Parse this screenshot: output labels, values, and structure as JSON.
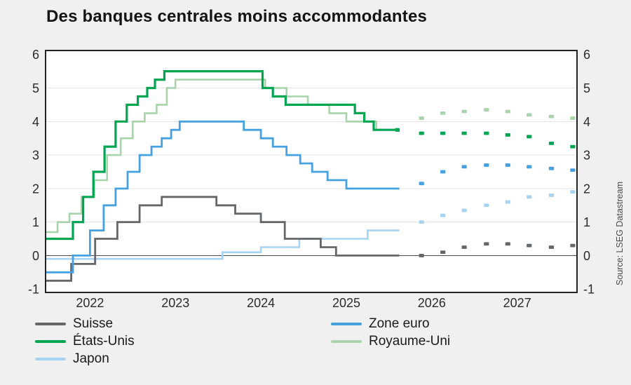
{
  "title": "Des banques centrales moins accommodantes",
  "source": "Source: LSEG Datastream",
  "style": {
    "page_bg": "#f0f0f0",
    "plot_bg": "#ffffff",
    "grid_color": "#e4e4e4",
    "zero_line_color": "#4d4d4d",
    "border_color": "#222222",
    "tick_text_color": "#2b2b2b",
    "title_color": "#141414",
    "source_color": "#4a4a4a"
  },
  "legend": {
    "columns": [
      {
        "items": [
          {
            "series": "suisse",
            "label": "Suisse"
          },
          {
            "series": "etats_unis",
            "label": "États-Unis"
          },
          {
            "series": "japon",
            "label": "Japon"
          }
        ]
      },
      {
        "items": [
          {
            "series": "zone_euro",
            "label": "Zone euro"
          },
          {
            "series": "royaume_uni",
            "label": "Royaume-Uni"
          }
        ]
      }
    ]
  },
  "chart_data": {
    "type": "line",
    "subtype": "step-with-forecast-dots",
    "unit": "taux directeurs, %",
    "xlim": [
      2021.98,
      2028.2
    ],
    "ylim": [
      -1.1,
      6.12
    ],
    "grid": true,
    "y_ticks": [
      -1,
      0,
      1,
      2,
      3,
      4,
      5,
      6
    ],
    "x_ticks": [
      {
        "label": "2022",
        "t": 2022.5
      },
      {
        "label": "2023",
        "t": 2023.5
      },
      {
        "label": "2024",
        "t": 2024.5
      },
      {
        "label": "2025",
        "t": 2025.5
      },
      {
        "label": "2026",
        "t": 2026.5
      },
      {
        "label": "2027",
        "t": 2027.5
      }
    ],
    "solid_end_t": 2026.12,
    "forecast_t": [
      2026.38,
      2026.63,
      2026.88,
      2027.14,
      2027.39,
      2027.64,
      2027.9,
      2028.15
    ],
    "series": [
      {
        "name": "royaume_uni",
        "label": "Royaume-Uni",
        "color": "#a9d4ab",
        "width": 2.6,
        "steps": [
          [
            2022.0,
            0.7
          ],
          [
            2022.12,
            1.0
          ],
          [
            2022.26,
            1.25
          ],
          [
            2022.4,
            1.75
          ],
          [
            2022.55,
            2.25
          ],
          [
            2022.7,
            3.0
          ],
          [
            2022.86,
            3.5
          ],
          [
            2023.0,
            4.0
          ],
          [
            2023.14,
            4.25
          ],
          [
            2023.28,
            4.5
          ],
          [
            2023.4,
            5.0
          ],
          [
            2023.5,
            5.25
          ],
          [
            2024.55,
            5.0
          ],
          [
            2024.8,
            4.75
          ],
          [
            2025.05,
            4.5
          ],
          [
            2025.3,
            4.25
          ],
          [
            2025.5,
            4.0
          ],
          [
            2025.85,
            3.75
          ]
        ],
        "forecast": [
          4.1,
          4.25,
          4.3,
          4.35,
          4.3,
          4.2,
          4.15,
          4.1
        ]
      },
      {
        "name": "japon",
        "label": "Japon",
        "color": "#a6d4f2",
        "width": 2.6,
        "steps": [
          [
            2022.0,
            -0.1
          ],
          [
            2024.05,
            0.1
          ],
          [
            2024.5,
            0.25
          ],
          [
            2024.95,
            0.5
          ],
          [
            2025.75,
            0.75
          ]
        ],
        "forecast": [
          1.0,
          1.2,
          1.35,
          1.5,
          1.6,
          1.75,
          1.8,
          1.9
        ]
      },
      {
        "name": "suisse",
        "label": "Suisse",
        "color": "#63676a",
        "width": 2.8,
        "steps": [
          [
            2022.0,
            -0.75
          ],
          [
            2022.28,
            -0.25
          ],
          [
            2022.56,
            0.5
          ],
          [
            2022.82,
            1.0
          ],
          [
            2023.08,
            1.5
          ],
          [
            2023.34,
            1.75
          ],
          [
            2023.98,
            1.5
          ],
          [
            2024.2,
            1.25
          ],
          [
            2024.5,
            1.0
          ],
          [
            2024.78,
            0.5
          ],
          [
            2025.2,
            0.25
          ],
          [
            2025.38,
            0.0
          ]
        ],
        "forecast": [
          0.0,
          0.1,
          0.25,
          0.35,
          0.35,
          0.3,
          0.25,
          0.3
        ]
      },
      {
        "name": "zone_euro",
        "label": "Zone euro",
        "color": "#45a1e0",
        "width": 2.8,
        "steps": [
          [
            2022.0,
            -0.5
          ],
          [
            2022.3,
            0.0
          ],
          [
            2022.5,
            0.75
          ],
          [
            2022.66,
            1.5
          ],
          [
            2022.8,
            2.0
          ],
          [
            2022.94,
            2.5
          ],
          [
            2023.08,
            3.0
          ],
          [
            2023.22,
            3.25
          ],
          [
            2023.34,
            3.5
          ],
          [
            2023.45,
            3.75
          ],
          [
            2023.55,
            4.0
          ],
          [
            2024.3,
            3.75
          ],
          [
            2024.5,
            3.5
          ],
          [
            2024.64,
            3.25
          ],
          [
            2024.8,
            3.0
          ],
          [
            2024.96,
            2.75
          ],
          [
            2025.1,
            2.5
          ],
          [
            2025.28,
            2.25
          ],
          [
            2025.5,
            2.0
          ]
        ],
        "forecast": [
          2.15,
          2.5,
          2.65,
          2.7,
          2.7,
          2.65,
          2.6,
          2.55
        ]
      },
      {
        "name": "etats_unis",
        "label": "États-Unis",
        "color": "#00a551",
        "width": 3.2,
        "end_marker": true,
        "steps": [
          [
            2022.0,
            0.5
          ],
          [
            2022.3,
            1.0
          ],
          [
            2022.42,
            1.75
          ],
          [
            2022.54,
            2.5
          ],
          [
            2022.67,
            3.25
          ],
          [
            2022.8,
            4.0
          ],
          [
            2022.93,
            4.5
          ],
          [
            2023.06,
            4.75
          ],
          [
            2023.17,
            5.0
          ],
          [
            2023.26,
            5.25
          ],
          [
            2023.37,
            5.5
          ],
          [
            2024.52,
            5.0
          ],
          [
            2024.64,
            4.75
          ],
          [
            2024.79,
            4.5
          ],
          [
            2025.6,
            4.25
          ],
          [
            2025.71,
            4.0
          ],
          [
            2025.82,
            3.75
          ]
        ],
        "forecast": [
          3.65,
          3.65,
          3.65,
          3.65,
          3.6,
          3.55,
          3.35,
          3.25
        ]
      }
    ]
  }
}
